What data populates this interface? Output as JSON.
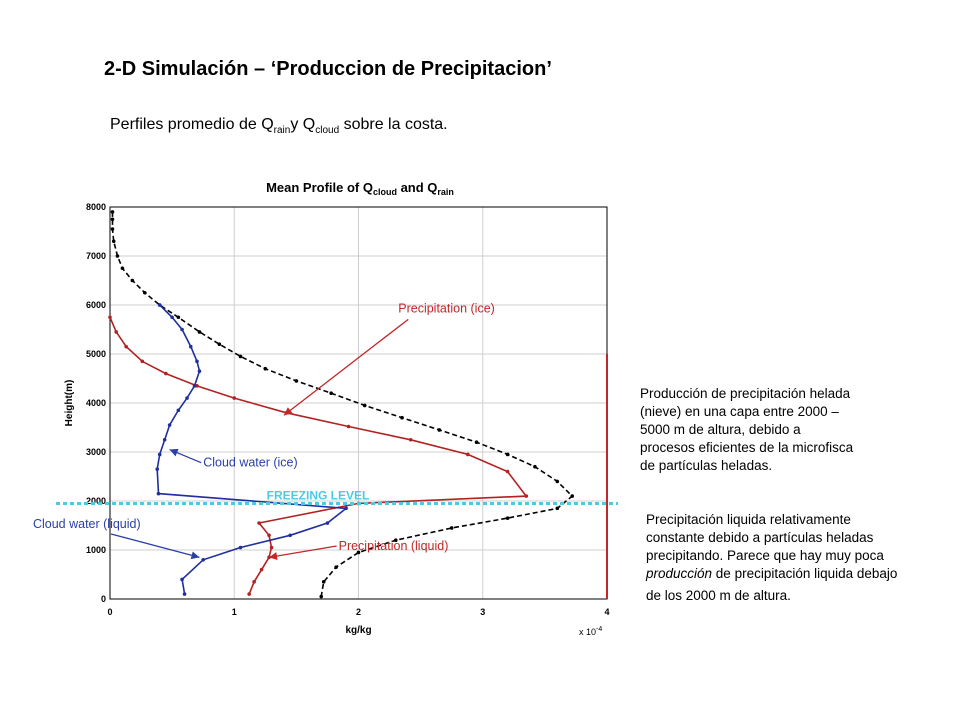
{
  "slide": {
    "title": "2-D Simulación – ‘Produccion de Precipitacion’",
    "subtitle_prefix": "Perfiles promedio de Q",
    "subtitle_sub1": "rain",
    "subtitle_mid": "y Q",
    "subtitle_sub2": "cloud",
    "subtitle_suffix": " sobre la costa."
  },
  "notes": {
    "ice": [
      "Producción de precipitación helada",
      "(nieve) en una capa entre 2000 –",
      "5000 m de altura, debido a",
      "procesos eficientes de la microfisca",
      "de partículas heladas."
    ],
    "liquid_lines": [
      "Precipitación liquida relativamente",
      "constante debido a partículas heladas",
      "precipitando.  Parece que  hay muy poca"
    ],
    "liquid_line4_italic": "producción",
    "liquid_line4_rest": " de precipitación liquida debajo",
    "liquid_line5": "de los 2000 m de altura."
  },
  "chart_data": {
    "type": "line",
    "title_main": "Mean Profile of Q",
    "title_sub1": "cloud",
    "title_mid": " and Q",
    "title_sub2": "rain",
    "xlabel": "kg/kg",
    "ylabel": "Height(m)",
    "x_multiplier": "x 10",
    "x_multiplier_exp": "-4",
    "xlim": [
      0,
      4
    ],
    "ylim": [
      0,
      8000
    ],
    "xticks": [
      0,
      1,
      2,
      3,
      4
    ],
    "yticks": [
      0,
      1000,
      2000,
      3000,
      4000,
      5000,
      6000,
      7000,
      8000
    ],
    "grid": true,
    "freezing_level": {
      "label": "FREEZING LEVEL",
      "y": 1950,
      "color": "#4fc8e8"
    },
    "right_bracket": {
      "y_range": [
        0,
        5000
      ],
      "color": "#c0282a"
    },
    "series": [
      {
        "color": "#000000",
        "dashed": true,
        "points": [
          [
            0.02,
            7900
          ],
          [
            0.02,
            7750
          ],
          [
            0.02,
            7550
          ],
          [
            0.03,
            7300
          ],
          [
            0.06,
            7000
          ],
          [
            0.1,
            6750
          ],
          [
            0.18,
            6500
          ],
          [
            0.28,
            6250
          ],
          [
            0.4,
            6000
          ],
          [
            0.55,
            5750
          ],
          [
            0.72,
            5450
          ],
          [
            0.88,
            5200
          ],
          [
            1.05,
            4950
          ],
          [
            1.25,
            4700
          ],
          [
            1.5,
            4450
          ],
          [
            1.78,
            4200
          ],
          [
            2.05,
            3950
          ],
          [
            2.35,
            3700
          ],
          [
            2.65,
            3450
          ],
          [
            2.95,
            3200
          ],
          [
            3.2,
            2950
          ],
          [
            3.42,
            2700
          ],
          [
            3.6,
            2400
          ],
          [
            3.72,
            2100
          ],
          [
            3.6,
            1850
          ],
          [
            3.2,
            1650
          ],
          [
            2.75,
            1450
          ],
          [
            2.3,
            1200
          ],
          [
            2.0,
            950
          ],
          [
            1.82,
            650
          ],
          [
            1.72,
            350
          ],
          [
            1.7,
            50
          ]
        ]
      },
      {
        "color": "#b22222",
        "dashed": false,
        "points": [
          [
            0.0,
            5750
          ],
          [
            0.05,
            5450
          ],
          [
            0.13,
            5150
          ],
          [
            0.26,
            4850
          ],
          [
            0.45,
            4600
          ],
          [
            0.7,
            4350
          ],
          [
            1.0,
            4100
          ],
          [
            1.42,
            3800
          ],
          [
            1.92,
            3520
          ],
          [
            2.42,
            3250
          ],
          [
            2.88,
            2950
          ],
          [
            3.2,
            2600
          ],
          [
            3.35,
            2100
          ],
          [
            2.0,
            1950
          ],
          [
            1.2,
            1550
          ],
          [
            1.28,
            1300
          ],
          [
            1.3,
            1050
          ],
          [
            1.28,
            850
          ],
          [
            1.22,
            600
          ],
          [
            1.16,
            350
          ],
          [
            1.12,
            100
          ]
        ]
      },
      {
        "color": "#1f2f9e",
        "dashed": false,
        "points": [
          [
            0.4,
            6000
          ],
          [
            0.5,
            5750
          ],
          [
            0.58,
            5500
          ],
          [
            0.65,
            5150
          ],
          [
            0.7,
            4850
          ],
          [
            0.72,
            4650
          ],
          [
            0.68,
            4350
          ],
          [
            0.62,
            4100
          ],
          [
            0.55,
            3850
          ],
          [
            0.48,
            3550
          ],
          [
            0.44,
            3250
          ],
          [
            0.4,
            2950
          ],
          [
            0.38,
            2650
          ],
          [
            0.39,
            2150
          ],
          [
            1.9,
            1850
          ],
          [
            1.75,
            1550
          ],
          [
            1.45,
            1300
          ],
          [
            1.05,
            1050
          ],
          [
            0.75,
            800
          ],
          [
            0.58,
            400
          ],
          [
            0.6,
            100
          ]
        ]
      }
    ],
    "annotations": [
      {
        "text": "Precipitation (ice)",
        "color": "#c0282a",
        "x": 2.32,
        "y": 5850,
        "arrow_to": [
          1.4,
          3750
        ]
      },
      {
        "text": "Cloud water (ice)",
        "color": "#2b3fa8",
        "x": 0.75,
        "y": 2700,
        "arrow_to": [
          0.48,
          3050
        ]
      },
      {
        "text": "Cloud water (liquid)",
        "color": "#2b3fa8",
        "x": -0.62,
        "y": 1450,
        "arrow_to": [
          0.72,
          850
        ]
      },
      {
        "text": "Precipitation (liquid)",
        "color": "#c0282a",
        "x": 1.84,
        "y": 1000,
        "arrow_to": [
          1.28,
          850
        ]
      }
    ]
  }
}
